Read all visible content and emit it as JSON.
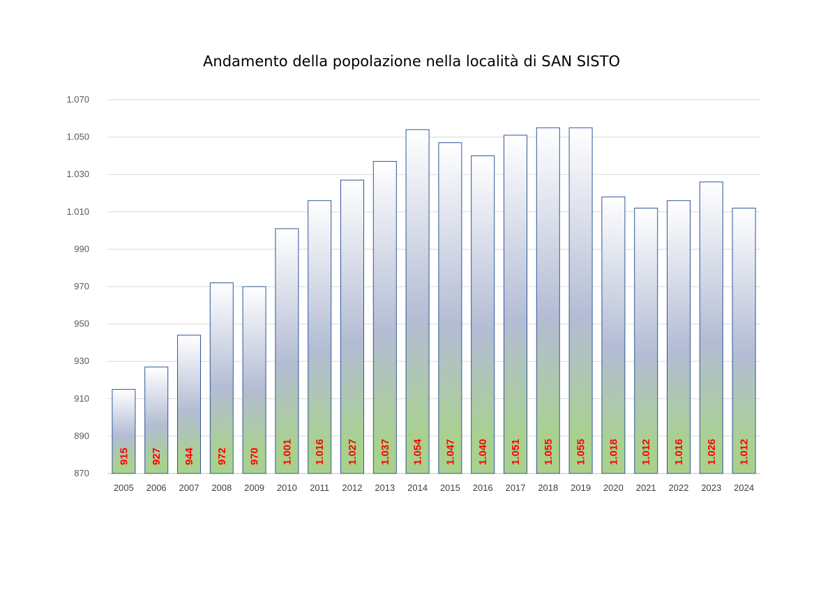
{
  "chart_data": {
    "type": "bar",
    "title": "Andamento della popolazione nella località di SAN SISTO",
    "categories": [
      "2005",
      "2006",
      "2007",
      "2008",
      "2009",
      "2010",
      "2011",
      "2012",
      "2013",
      "2014",
      "2015",
      "2016",
      "2017",
      "2018",
      "2019",
      "2020",
      "2021",
      "2022",
      "2023",
      "2024"
    ],
    "values": [
      915,
      927,
      944,
      972,
      970,
      1001,
      1016,
      1027,
      1037,
      1054,
      1047,
      1040,
      1051,
      1055,
      1055,
      1018,
      1012,
      1016,
      1026,
      1012
    ],
    "data_labels": [
      "915",
      "927",
      "944",
      "972",
      "970",
      "1.001",
      "1.016",
      "1.027",
      "1.037",
      "1.054",
      "1.047",
      "1.040",
      "1.051",
      "1.055",
      "1.055",
      "1.018",
      "1.012",
      "1.016",
      "1.026",
      "1.012"
    ],
    "yticks": [
      870,
      890,
      910,
      930,
      950,
      970,
      990,
      1010,
      1030,
      1050,
      1070
    ],
    "ytick_labels": [
      "870",
      "890",
      "910",
      "930",
      "950",
      "970",
      "990",
      "1.010",
      "1.030",
      "1.050",
      "1.070"
    ],
    "ylim": [
      870,
      1070
    ],
    "xlabel": "",
    "ylabel": "",
    "grid": true,
    "legend": "none",
    "colors": {
      "bar_top": "#ffffff",
      "bar_mid": "#b3bcd4",
      "bar_bottom": "#a9d18e",
      "bar_border": "#2f5597",
      "data_label": "#ff0000",
      "grid": "#d9d9d9"
    }
  }
}
